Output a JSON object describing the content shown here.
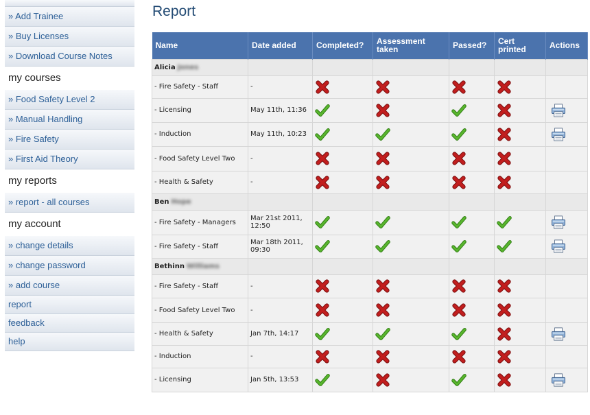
{
  "sidebar": {
    "top_partial": "",
    "items": [
      {
        "type": "link",
        "label": "» Add Trainee",
        "name": "nav-add-trainee"
      },
      {
        "type": "link",
        "label": "» Buy Licenses",
        "name": "nav-buy-licenses"
      },
      {
        "type": "link",
        "label": "» Download Course Notes",
        "name": "nav-download-course-notes"
      },
      {
        "type": "head",
        "label": "my courses",
        "name": "heading-my-courses"
      },
      {
        "type": "link",
        "label": "» Food Safety Level 2",
        "name": "nav-food-safety-level-2"
      },
      {
        "type": "link",
        "label": "» Manual Handling",
        "name": "nav-manual-handling"
      },
      {
        "type": "link",
        "label": "» Fire Safety",
        "name": "nav-fire-safety"
      },
      {
        "type": "link",
        "label": "» First Aid Theory",
        "name": "nav-first-aid-theory"
      },
      {
        "type": "head",
        "label": "my reports",
        "name": "heading-my-reports"
      },
      {
        "type": "link",
        "label": "» report - all courses",
        "name": "nav-report-all-courses"
      },
      {
        "type": "head",
        "label": "my account",
        "name": "heading-my-account"
      },
      {
        "type": "link",
        "label": "» change details",
        "name": "nav-change-details"
      },
      {
        "type": "link",
        "label": "» change password",
        "name": "nav-change-password"
      },
      {
        "type": "link",
        "label": "» add course",
        "name": "nav-add-course"
      },
      {
        "type": "link",
        "label": "report",
        "name": "nav-report"
      },
      {
        "type": "link",
        "label": "feedback",
        "name": "nav-feedback"
      },
      {
        "type": "link",
        "label": "help",
        "name": "nav-help"
      }
    ]
  },
  "main": {
    "title": "Report",
    "columns": [
      "Name",
      "Date added",
      "Completed?",
      "Assessment taken",
      "Passed?",
      "Cert printed",
      "Actions"
    ],
    "groups": [
      {
        "first": "Alicia",
        "last": "Jones",
        "rows": [
          {
            "course": "- Fire Safety - Staff",
            "date": "-",
            "completed": false,
            "assessment": false,
            "passed": false,
            "cert": false,
            "print": false
          },
          {
            "course": "- Licensing",
            "date": "May 11th, 11:36",
            "completed": true,
            "assessment": false,
            "passed": true,
            "cert": false,
            "print": true
          },
          {
            "course": "- Induction",
            "date": "May 11th, 10:23",
            "completed": true,
            "assessment": true,
            "passed": true,
            "cert": false,
            "print": true
          },
          {
            "course": "- Food Safety Level Two",
            "date": "-",
            "completed": false,
            "assessment": false,
            "passed": false,
            "cert": false,
            "print": false
          },
          {
            "course": "- Health & Safety",
            "date": "-",
            "completed": false,
            "assessment": false,
            "passed": false,
            "cert": false,
            "print": false
          }
        ]
      },
      {
        "first": "Ben",
        "last": "Hope",
        "rows": [
          {
            "course": "- Fire Safety - Managers",
            "date": "Mar 21st 2011, 12:50",
            "completed": true,
            "assessment": true,
            "passed": true,
            "cert": true,
            "print": true
          },
          {
            "course": "- Fire Safety - Staff",
            "date": "Mar 18th 2011, 09:30",
            "completed": true,
            "assessment": true,
            "passed": true,
            "cert": true,
            "print": true
          }
        ]
      },
      {
        "first": "Bethinn",
        "last": "Williams",
        "rows": [
          {
            "course": "- Fire Safety - Staff",
            "date": "-",
            "completed": false,
            "assessment": false,
            "passed": false,
            "cert": false,
            "print": false
          },
          {
            "course": "- Food Safety Level Two",
            "date": "-",
            "completed": false,
            "assessment": false,
            "passed": false,
            "cert": false,
            "print": false
          },
          {
            "course": "- Health & Safety",
            "date": "Jan 7th, 14:17",
            "completed": true,
            "assessment": true,
            "passed": true,
            "cert": false,
            "print": true
          },
          {
            "course": "- Induction",
            "date": "-",
            "completed": false,
            "assessment": false,
            "passed": false,
            "cert": false,
            "print": false
          },
          {
            "course": "- Licensing",
            "date": "Jan 5th, 13:53",
            "completed": true,
            "assessment": false,
            "passed": true,
            "cert": false,
            "print": true
          }
        ]
      }
    ]
  },
  "icons": {
    "yes": "check-icon",
    "no": "cross-icon",
    "print": "printer-icon"
  },
  "colors": {
    "header_bg": "#4b73ad",
    "link": "#2c5f97",
    "title": "#234b74",
    "check": "#59b52e",
    "cross": "#c21e1e"
  }
}
